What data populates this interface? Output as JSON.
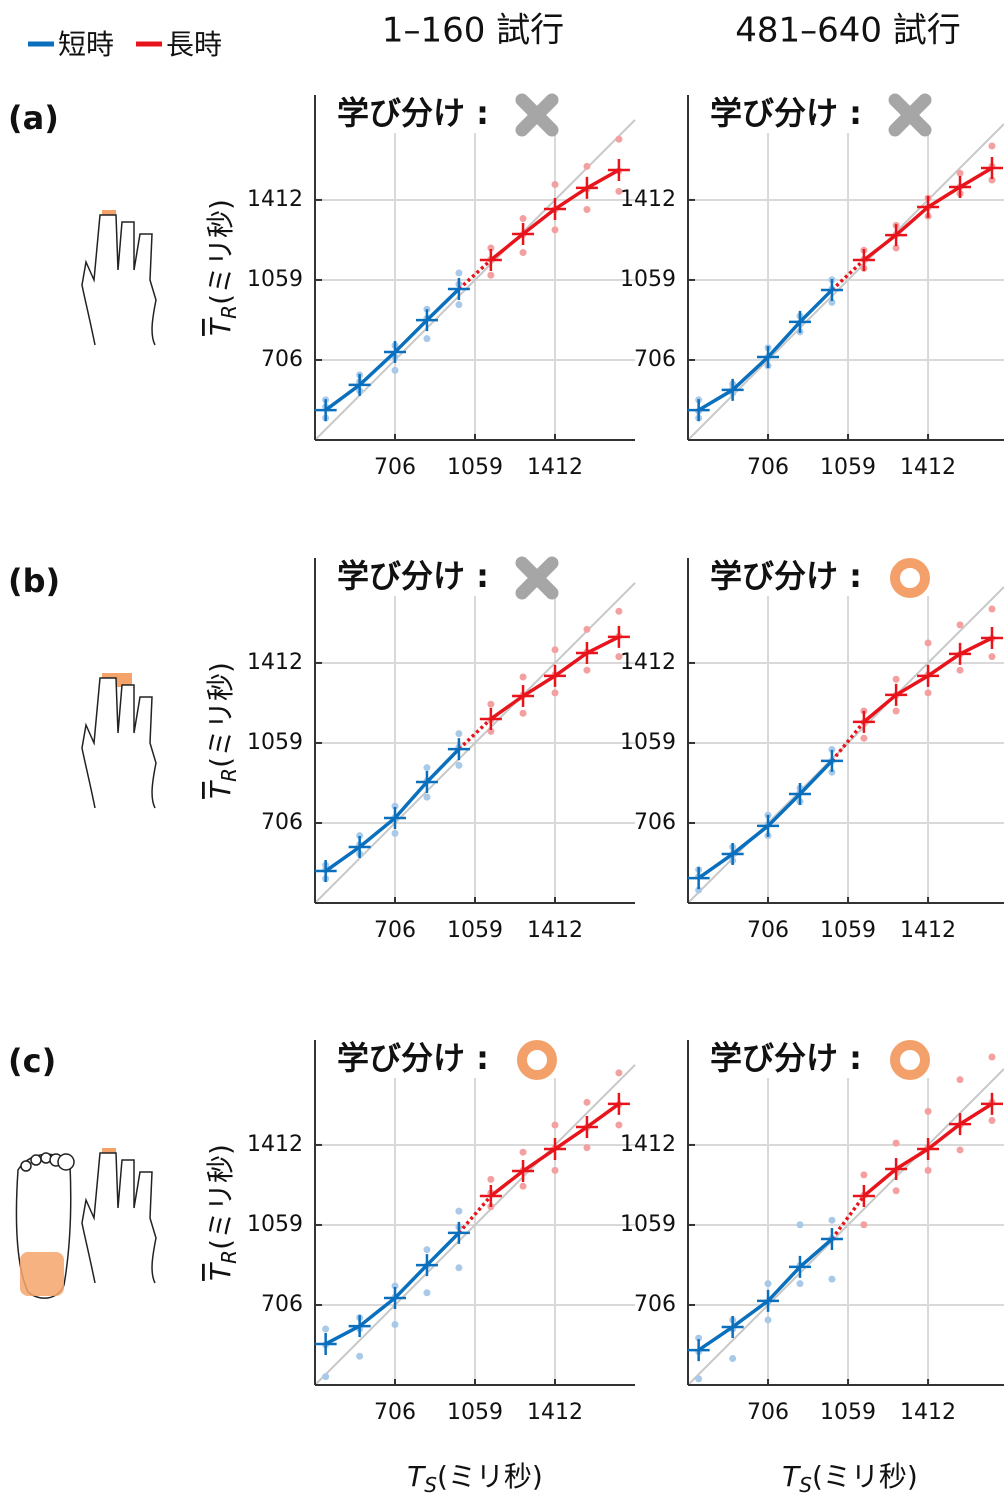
{
  "column_titles": [
    "1–160 試行",
    "481–640 試行"
  ],
  "row_labels": [
    "(a)",
    "(b)",
    "(c)"
  ],
  "chart_data": [
    {
      "type": "line",
      "ylabel": {
        "var": "T",
        "sub": "R",
        "unit": "(ミリ秒)"
      },
      "annotation": {
        "text": "学び分け :",
        "learned": false
      },
      "xlim": [
        353,
        1765
      ],
      "ylim": [
        353,
        1875
      ],
      "xticks": [
        706,
        1059,
        1412
      ],
      "yticks": [
        706,
        1059,
        1412
      ],
      "grid": true,
      "identity_line": true,
      "series": [
        {
          "name": "短時",
          "color": "#0a6fbd",
          "dot_color": "#a9c9e8",
          "x": [
            400,
            550,
            706,
            847,
            988
          ],
          "values": [
            485,
            596,
            741,
            882,
            1019
          ],
          "dots": [
            [
              450,
              500,
              530
            ],
            [
              570,
              610,
              640
            ],
            [
              660,
              720,
              770
            ],
            [
              800,
              890,
              930
            ],
            [
              950,
              1040,
              1090
            ]
          ]
        },
        {
          "name": "長時",
          "color": "#e8141c",
          "dot_color": "#f4a0a0",
          "x": [
            1129,
            1271,
            1412,
            1553,
            1694
          ],
          "values": [
            1147,
            1262,
            1372,
            1465,
            1544
          ],
          "dots": [
            [
              1080,
              1150,
              1200
            ],
            [
              1180,
              1260,
              1330
            ],
            [
              1280,
              1370,
              1480
            ],
            [
              1370,
              1460,
              1560
            ],
            [
              1450,
              1540,
              1680
            ]
          ]
        }
      ]
    },
    {
      "type": "line",
      "annotation": {
        "text": "学び分け :",
        "learned": false
      },
      "xlim": [
        353,
        1747
      ],
      "ylim": [
        353,
        1875
      ],
      "xticks": [
        706,
        1059,
        1412
      ],
      "yticks": [
        706,
        1059,
        1412
      ],
      "grid": true,
      "identity_line": true,
      "series": [
        {
          "name": "短時",
          "color": "#0a6fbd",
          "dot_color": "#a9c9e8",
          "x": [
            400,
            550,
            706,
            847,
            988
          ],
          "values": [
            485,
            574,
            719,
            874,
            1015
          ],
          "dots": [
            [
              450,
              480,
              530
            ],
            [
              560,
              580,
              600
            ],
            [
              680,
              720,
              760
            ],
            [
              830,
              870,
              900
            ],
            [
              960,
              1020,
              1060
            ]
          ]
        },
        {
          "name": "長時",
          "color": "#e8141c",
          "dot_color": "#f4a0a0",
          "x": [
            1129,
            1271,
            1412,
            1553,
            1694
          ],
          "values": [
            1147,
            1257,
            1381,
            1469,
            1553
          ],
          "dots": [
            [
              1110,
              1150,
              1190
            ],
            [
              1200,
              1260,
              1300
            ],
            [
              1340,
              1380,
              1420
            ],
            [
              1440,
              1470,
              1530
            ],
            [
              1500,
              1560,
              1650
            ]
          ]
        }
      ]
    },
    {
      "type": "line",
      "ylabel": {
        "var": "T",
        "sub": "R",
        "unit": "(ミリ秒)"
      },
      "annotation": {
        "text": "学び分け :",
        "learned": false
      },
      "xlim": [
        353,
        1765
      ],
      "ylim": [
        353,
        1875
      ],
      "xticks": [
        706,
        1059,
        1412
      ],
      "yticks": [
        706,
        1059,
        1412
      ],
      "grid": true,
      "identity_line": true,
      "series": [
        {
          "name": "短時",
          "color": "#0a6fbd",
          "dot_color": "#a9c9e8",
          "x": [
            400,
            550,
            706,
            847,
            988
          ],
          "values": [
            494,
            600,
            728,
            887,
            1032
          ],
          "dots": [
            [
              460,
              500,
              520
            ],
            [
              570,
              610,
              650
            ],
            [
              660,
              730,
              780
            ],
            [
              820,
              890,
              950
            ],
            [
              960,
              1040,
              1100
            ]
          ]
        },
        {
          "name": "長時",
          "color": "#e8141c",
          "dot_color": "#f4a0a0",
          "x": [
            1129,
            1271,
            1412,
            1553,
            1694
          ],
          "values": [
            1165,
            1266,
            1355,
            1456,
            1527
          ],
          "dots": [
            [
              1110,
              1160,
              1230
            ],
            [
              1190,
              1270,
              1350
            ],
            [
              1280,
              1360,
              1470
            ],
            [
              1380,
              1460,
              1560
            ],
            [
              1440,
              1530,
              1640
            ]
          ]
        }
      ]
    },
    {
      "type": "line",
      "annotation": {
        "text": "学び分け :",
        "learned": true
      },
      "xlim": [
        353,
        1747
      ],
      "ylim": [
        353,
        1875
      ],
      "xticks": [
        706,
        1059,
        1412
      ],
      "yticks": [
        706,
        1059,
        1412
      ],
      "grid": true,
      "identity_line": true,
      "series": [
        {
          "name": "短時",
          "color": "#0a6fbd",
          "dot_color": "#a9c9e8",
          "x": [
            400,
            550,
            706,
            847,
            988
          ],
          "values": [
            463,
            569,
            693,
            834,
            980
          ],
          "dots": [
            [
              410,
              470,
              500
            ],
            [
              540,
              570,
              600
            ],
            [
              650,
              700,
              740
            ],
            [
              800,
              840,
              860
            ],
            [
              930,
              980,
              1030
            ]
          ]
        },
        {
          "name": "長時",
          "color": "#e8141c",
          "dot_color": "#f4a0a0",
          "x": [
            1129,
            1271,
            1412,
            1553,
            1694
          ],
          "values": [
            1152,
            1271,
            1355,
            1452,
            1522
          ],
          "dots": [
            [
              1080,
              1150,
              1200
            ],
            [
              1200,
              1270,
              1340
            ],
            [
              1280,
              1360,
              1500
            ],
            [
              1380,
              1450,
              1580
            ],
            [
              1440,
              1520,
              1650
            ]
          ]
        }
      ]
    },
    {
      "type": "line",
      "ylabel": {
        "var": "T",
        "sub": "R",
        "unit": "(ミリ秒)"
      },
      "xlabel": {
        "var": "T",
        "sub": "S",
        "unit": "(ミリ秒)"
      },
      "annotation": {
        "text": "学び分け :",
        "learned": true
      },
      "xlim": [
        353,
        1765
      ],
      "ylim": [
        353,
        1875
      ],
      "xticks": [
        706,
        1059,
        1412
      ],
      "yticks": [
        706,
        1059,
        1412
      ],
      "grid": true,
      "identity_line": true,
      "series": [
        {
          "name": "短時",
          "color": "#0a6fbd",
          "dot_color": "#a9c9e8",
          "x": [
            400,
            550,
            706,
            847,
            988
          ],
          "values": [
            534,
            613,
            737,
            882,
            1024
          ],
          "dots": [
            [
              390,
              530,
              600
            ],
            [
              480,
              600,
              650
            ],
            [
              620,
              740,
              790
            ],
            [
              760,
              880,
              950
            ],
            [
              870,
              1050,
              1120
            ]
          ]
        },
        {
          "name": "長時",
          "color": "#e8141c",
          "dot_color": "#f4a0a0",
          "x": [
            1129,
            1271,
            1412,
            1553,
            1694
          ],
          "values": [
            1187,
            1297,
            1394,
            1491,
            1593
          ],
          "dots": [
            [
              1140,
              1200,
              1260
            ],
            [
              1230,
              1300,
              1380
            ],
            [
              1300,
              1400,
              1500
            ],
            [
              1400,
              1490,
              1600
            ],
            [
              1500,
              1590,
              1730
            ]
          ]
        }
      ]
    },
    {
      "type": "line",
      "xlabel": {
        "var": "T",
        "sub": "S",
        "unit": "(ミリ秒)"
      },
      "annotation": {
        "text": "学び分け :",
        "learned": true
      },
      "xlim": [
        353,
        1747
      ],
      "ylim": [
        353,
        1875
      ],
      "xticks": [
        706,
        1059,
        1412
      ],
      "yticks": [
        706,
        1059,
        1412
      ],
      "grid": true,
      "identity_line": true,
      "series": [
        {
          "name": "短時",
          "color": "#0a6fbd",
          "dot_color": "#a9c9e8",
          "x": [
            400,
            550,
            706,
            847,
            988
          ],
          "values": [
            507,
            609,
            724,
            874,
            997
          ],
          "dots": [
            [
              380,
              500,
              560
            ],
            [
              470,
              600,
              640
            ],
            [
              640,
              720,
              800
            ],
            [
              800,
              880,
              1060
            ],
            [
              820,
              1000,
              1080
            ]
          ]
        },
        {
          "name": "長時",
          "color": "#e8141c",
          "dot_color": "#f4a0a0",
          "x": [
            1129,
            1271,
            1412,
            1553,
            1694
          ],
          "values": [
            1187,
            1306,
            1394,
            1504,
            1593
          ],
          "dots": [
            [
              1060,
              1190,
              1280
            ],
            [
              1210,
              1300,
              1420
            ],
            [
              1300,
              1400,
              1560
            ],
            [
              1390,
              1500,
              1700
            ],
            [
              1520,
              1600,
              1800
            ]
          ]
        }
      ]
    }
  ]
}
